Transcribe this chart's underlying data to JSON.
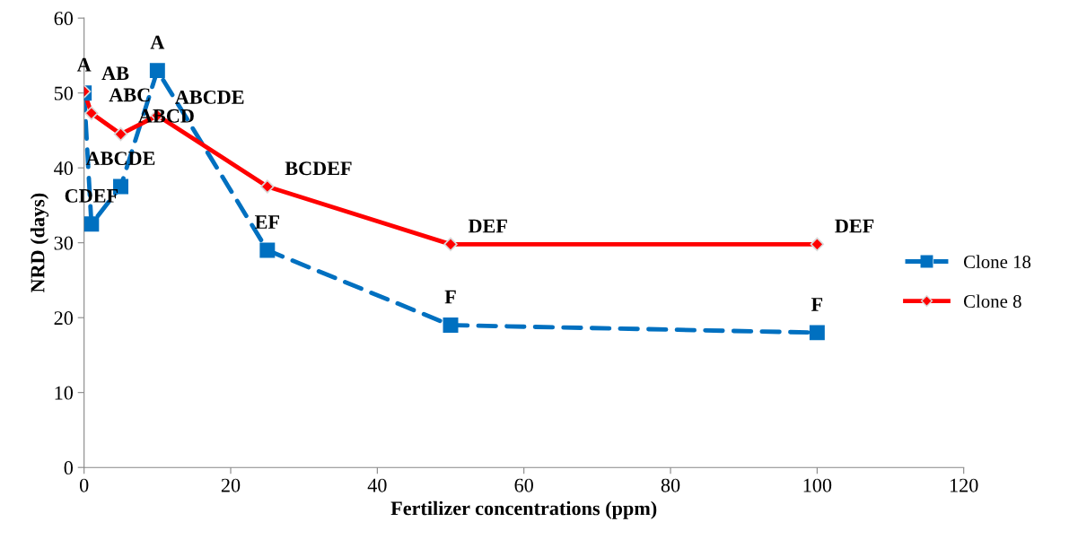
{
  "chart_data": {
    "type": "line",
    "xlabel": "Fertilizer concentrations (ppm)",
    "ylabel": "NRD (days)",
    "x": [
      0,
      1,
      5,
      10,
      25,
      50,
      100
    ],
    "series": [
      {
        "name": "Clone 18",
        "color": "#0070c0",
        "marker": "square",
        "line_style": "dashed",
        "values": [
          50,
          32.5,
          37.5,
          53,
          29,
          19,
          18
        ],
        "value_labels": [
          "A",
          "CDEF",
          "ABCDE",
          "A",
          "EF",
          "F",
          "F"
        ]
      },
      {
        "name": "Clone 8",
        "color": "#ff0000",
        "marker": "diamond",
        "line_style": "solid",
        "values": [
          50.2,
          47.3,
          44.5,
          47,
          37.5,
          29.8,
          29.8
        ],
        "value_labels": [
          "AB",
          "ABC",
          "ABCD",
          "ABCDE",
          "BCDEF",
          "DEF",
          "DEF"
        ]
      }
    ],
    "xlim": [
      0,
      120
    ],
    "xticks": [
      0,
      20,
      40,
      60,
      80,
      100,
      120
    ],
    "ylim": [
      0,
      60
    ],
    "yticks": [
      0,
      10,
      20,
      30,
      40,
      50,
      60
    ],
    "grid": false,
    "legend": "right"
  }
}
